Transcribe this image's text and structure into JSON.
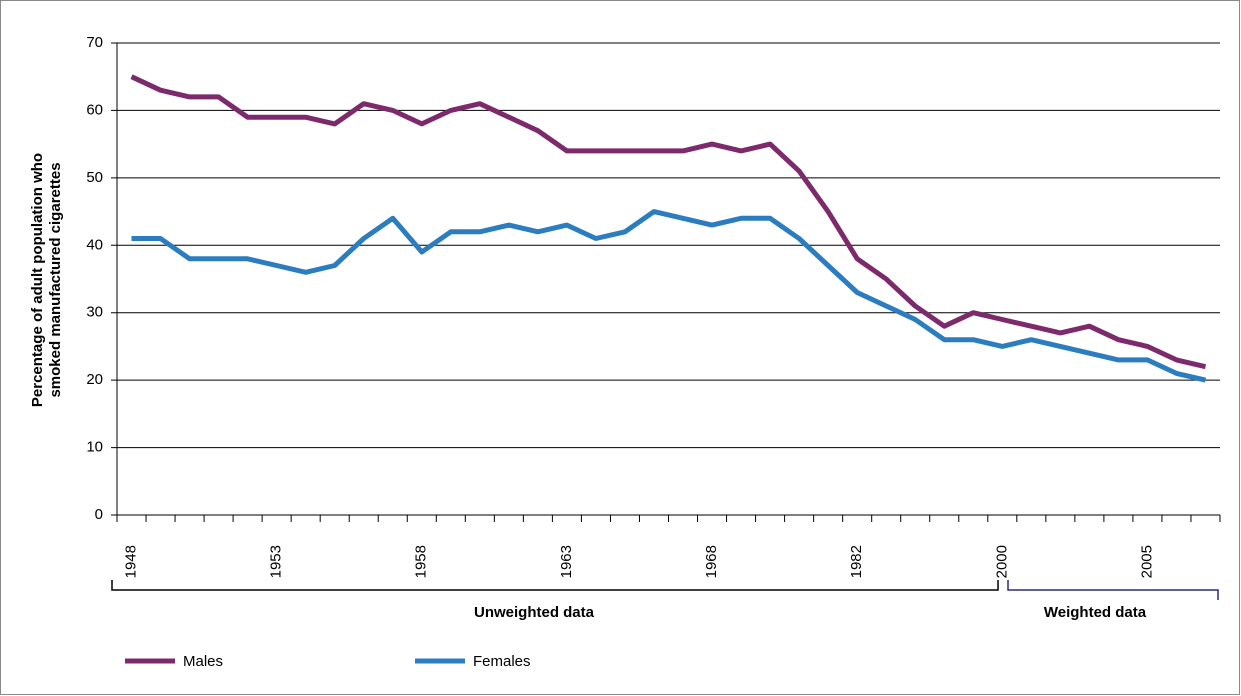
{
  "chart_data": {
    "type": "line",
    "ylabel_lines": [
      "Percentage of adult population who",
      "smoked manufactured cigarettes"
    ],
    "categories": [
      "1948",
      null,
      null,
      null,
      null,
      "1953",
      null,
      null,
      null,
      null,
      "1958",
      null,
      null,
      null,
      null,
      "1963",
      null,
      null,
      null,
      null,
      "1968",
      null,
      null,
      null,
      null,
      "1982",
      null,
      null,
      null,
      null,
      "2000",
      null,
      null,
      null,
      null,
      "2005",
      null,
      null
    ],
    "series": [
      {
        "name": "Males",
        "color": "#7d2a6c",
        "values": [
          65,
          63,
          62,
          62,
          59,
          59,
          59,
          58,
          61,
          60,
          58,
          60,
          61,
          59,
          57,
          54,
          54,
          54,
          54,
          54,
          55,
          54,
          55,
          51,
          45,
          38,
          35,
          31,
          28,
          30,
          29,
          28,
          27,
          28,
          26,
          25,
          23,
          22
        ]
      },
      {
        "name": "Females",
        "color": "#2c7dbf",
        "values": [
          41,
          41,
          38,
          38,
          38,
          37,
          36,
          37,
          41,
          44,
          39,
          42,
          42,
          43,
          42,
          43,
          41,
          42,
          45,
          44,
          43,
          44,
          44,
          41,
          37,
          33,
          31,
          29,
          26,
          26,
          25,
          26,
          25,
          24,
          23,
          23,
          21,
          20
        ]
      }
    ],
    "ylim": [
      0,
      70
    ],
    "yticks": [
      0,
      10,
      20,
      30,
      40,
      50,
      60,
      70
    ],
    "grid": true,
    "annotations": [
      "Unweighted data",
      "Weighted data"
    ],
    "legend": "bottom-left"
  }
}
